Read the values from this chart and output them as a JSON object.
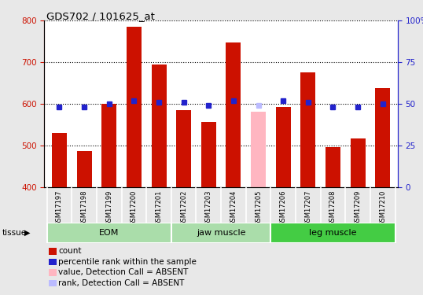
{
  "title": "GDS702 / 101625_at",
  "samples": [
    "GSM17197",
    "GSM17198",
    "GSM17199",
    "GSM17200",
    "GSM17201",
    "GSM17202",
    "GSM17203",
    "GSM17204",
    "GSM17205",
    "GSM17206",
    "GSM17207",
    "GSM17208",
    "GSM17209",
    "GSM17210"
  ],
  "counts": [
    530,
    487,
    600,
    785,
    695,
    585,
    557,
    748,
    582,
    593,
    675,
    497,
    517,
    638
  ],
  "ranks": [
    48,
    48,
    50,
    52,
    51,
    51,
    49,
    52,
    49,
    52,
    51,
    48,
    48,
    50
  ],
  "absent_indices": [
    8
  ],
  "group_defs": [
    {
      "label": "EOM",
      "start": 0,
      "end": 4,
      "color": "#aaddaa"
    },
    {
      "label": "jaw muscle",
      "start": 5,
      "end": 8,
      "color": "#aaddaa"
    },
    {
      "label": "leg muscle",
      "start": 9,
      "end": 13,
      "color": "#44cc44"
    }
  ],
  "bar_color_normal": "#CC1100",
  "bar_color_absent": "#FFB6C1",
  "rank_color_normal": "#2222CC",
  "rank_color_absent": "#BBBBFF",
  "ylim_left": [
    400,
    800
  ],
  "ylim_right": [
    0,
    100
  ],
  "yticks_left": [
    400,
    500,
    600,
    700,
    800
  ],
  "yticks_right": [
    0,
    25,
    50,
    75,
    100
  ],
  "ylabel_left_color": "#CC1100",
  "ylabel_right_color": "#2222CC",
  "background_color": "#e8e8e8",
  "plot_bg_color": "#ffffff",
  "label_area_color": "#cccccc",
  "legend_items": [
    {
      "color": "#CC1100",
      "label": "count"
    },
    {
      "color": "#2222CC",
      "label": "percentile rank within the sample"
    },
    {
      "color": "#FFB6C1",
      "label": "value, Detection Call = ABSENT"
    },
    {
      "color": "#BBBBFF",
      "label": "rank, Detection Call = ABSENT"
    }
  ]
}
